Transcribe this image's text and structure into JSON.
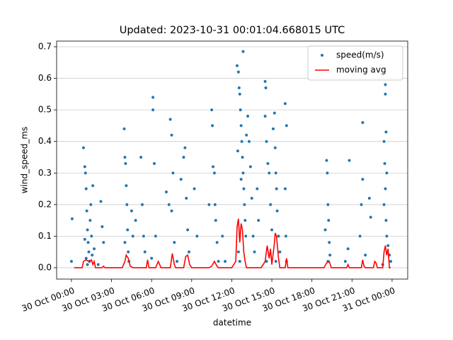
{
  "chart_data": {
    "type": "scatter",
    "title": "Updated: 2023-10-31 00:01:04.668015 UTC",
    "x_label": "datetime",
    "y_label": "wind_speed_ms",
    "xlim": [
      -1.11,
      25.17
    ],
    "xticks": [
      {
        "value": 0,
        "label": "30 Oct 00:00"
      },
      {
        "value": 3,
        "label": "30 Oct 03:00"
      },
      {
        "value": 6,
        "label": "30 Oct 06:00"
      },
      {
        "value": 9,
        "label": "30 Oct 09:00"
      },
      {
        "value": 12,
        "label": "30 Oct 12:00"
      },
      {
        "value": 15,
        "label": "30 Oct 15:00"
      },
      {
        "value": 18,
        "label": "30 Oct 18:00"
      },
      {
        "value": 21,
        "label": "30 Oct 21:00"
      },
      {
        "value": 24,
        "label": "31 Oct 00:00"
      }
    ],
    "ylim": [
      -0.036,
      0.718
    ],
    "yticks": [
      {
        "value": 0,
        "label": "0.0"
      },
      0.1,
      0.2,
      0.3,
      0.4,
      0.5,
      0.6,
      0.7
    ],
    "grid": "y",
    "legend": "upper right",
    "series": [
      {
        "name": "speed(m/s)",
        "type": "scatter",
        "color": "#1f77b4",
        "x": [
          0.05,
          0.0,
          0.9,
          1.0,
          1.05,
          1.1,
          1.15,
          1.2,
          1.25,
          1.3,
          1.35,
          1.4,
          1.45,
          1.5,
          1.55,
          1.6,
          1.7,
          1.2,
          1.0,
          1.1,
          2.2,
          2.3,
          2.4,
          2.0,
          3.95,
          4.0,
          4.05,
          4.1,
          4.15,
          4.2,
          4.25,
          4.3,
          4.0,
          4.5,
          4.6,
          4.8,
          5.2,
          5.3,
          5.4,
          5.5,
          6.0,
          6.1,
          6.1,
          6.2,
          6.3,
          7.1,
          7.3,
          7.4,
          7.5,
          7.6,
          7.5,
          7.7,
          7.9,
          8.2,
          8.4,
          8.5,
          8.6,
          8.7,
          8.8,
          9.2,
          9.4,
          10.3,
          10.5,
          10.55,
          10.6,
          10.7,
          10.75,
          10.8,
          10.9,
          11.0,
          11.3,
          11.5,
          12.4,
          12.5,
          12.55,
          12.6,
          12.65,
          12.7,
          12.75,
          12.8,
          12.85,
          12.9,
          12.95,
          13.0,
          13.05,
          12.5,
          12.6,
          12.85,
          13.2,
          13.3,
          13.4,
          13.5,
          13.6,
          13.7,
          12.7,
          12.45,
          13.1,
          13.9,
          14.0,
          14.5,
          14.55,
          14.5,
          14.6,
          14.7,
          14.8,
          14.9,
          15.0,
          15.1,
          15.2,
          15.25,
          15.3,
          15.35,
          15.4,
          15.5,
          15.6,
          14.6,
          15.3,
          16.0,
          16.1,
          16.0,
          16.05,
          16.1,
          19.1,
          19.15,
          19.2,
          19.25,
          19.3,
          19.35,
          19.0,
          19.2,
          20.8,
          20.7,
          20.5,
          21.7,
          21.6,
          21.8,
          21.8,
          22.0,
          22.3,
          22.4,
          23.4,
          23.5,
          23.5,
          23.55,
          23.45,
          23.6,
          23.5,
          23.4,
          23.55,
          23.6,
          23.7,
          23.8,
          23.9,
          23.3
        ],
        "values": [
          0.155,
          0.02,
          0.38,
          0.32,
          0.3,
          0.25,
          0.18,
          0.12,
          0.08,
          0.05,
          0.02,
          0.15,
          0.2,
          0.1,
          0.04,
          0.26,
          0.06,
          0.01,
          0.09,
          0.03,
          0.21,
          0.13,
          0.08,
          0.01,
          0.44,
          0.35,
          0.33,
          0.26,
          0.2,
          0.12,
          0.05,
          0.02,
          0.08,
          0.18,
          0.1,
          0.15,
          0.35,
          0.2,
          0.1,
          0.05,
          0.03,
          0.54,
          0.5,
          0.33,
          0.1,
          0.24,
          0.2,
          0.47,
          0.42,
          0.3,
          0.18,
          0.08,
          0.02,
          0.28,
          0.35,
          0.38,
          0.22,
          0.12,
          0.05,
          0.25,
          0.1,
          0.2,
          0.5,
          0.45,
          0.32,
          0.3,
          0.2,
          0.15,
          0.08,
          0.02,
          0.1,
          0.02,
          0.64,
          0.62,
          0.57,
          0.55,
          0.5,
          0.45,
          0.4,
          0.35,
          0.3,
          0.25,
          0.2,
          0.15,
          0.1,
          0.05,
          0.02,
          0.685,
          0.48,
          0.4,
          0.32,
          0.22,
          0.1,
          0.05,
          0.28,
          0.37,
          0.42,
          0.25,
          0.15,
          0.59,
          0.57,
          0.48,
          0.4,
          0.33,
          0.3,
          0.2,
          0.12,
          0.44,
          0.49,
          0.38,
          0.3,
          0.25,
          0.18,
          0.1,
          0.05,
          0.02,
          0.02,
          0.52,
          0.45,
          0.25,
          0.1,
          0.02,
          0.34,
          0.3,
          0.2,
          0.15,
          0.08,
          0.04,
          0.12,
          0.02,
          0.34,
          0.06,
          0.02,
          0.2,
          0.1,
          0.46,
          0.28,
          0.04,
          0.22,
          0.16,
          0.4,
          0.58,
          0.55,
          0.43,
          0.33,
          0.3,
          0.25,
          0.2,
          0.15,
          0.1,
          0.07,
          0.04,
          0.02,
          0.01
        ]
      },
      {
        "name": "moving avg",
        "type": "line",
        "color": "#ff0000",
        "x": [
          0.2,
          0.8,
          0.9,
          1.1,
          1.3,
          1.5,
          1.6,
          1.7,
          1.8,
          2.3,
          2.4,
          2.5,
          3.8,
          4.0,
          4.1,
          4.25,
          4.4,
          4.6,
          5.6,
          5.7,
          5.8,
          6.3,
          6.5,
          6.7,
          7.4,
          7.55,
          7.7,
          7.8,
          8.4,
          8.55,
          8.7,
          8.85,
          9.0,
          10.3,
          10.5,
          10.7,
          10.9,
          11.0,
          12.0,
          12.3,
          12.4,
          12.5,
          12.6,
          12.7,
          12.8,
          12.9,
          13.0,
          13.1,
          14.2,
          14.5,
          14.65,
          14.8,
          14.9,
          15.0,
          15.2,
          15.25,
          15.35,
          15.5,
          15.6,
          16.0,
          16.1,
          16.2,
          18.9,
          19.1,
          19.3,
          19.45,
          20.6,
          20.7,
          20.8,
          21.7,
          21.8,
          21.9,
          22.0,
          22.6,
          22.7,
          22.8,
          22.9,
          23.3,
          23.4,
          23.5,
          23.6,
          23.7,
          23.8,
          23.9
        ],
        "values": [
          0,
          0,
          0.02,
          0.025,
          0.02,
          0.025,
          0.01,
          0.02,
          0,
          0,
          0.005,
          0,
          0,
          0.02,
          0.04,
          0.03,
          0.005,
          0,
          0,
          0.025,
          0,
          0,
          0.02,
          0,
          0,
          0.045,
          0.01,
          0,
          0,
          0.035,
          0.04,
          0.01,
          0,
          0,
          0.005,
          0.02,
          0.005,
          0,
          0,
          0.02,
          0.13,
          0.155,
          0.08,
          0.14,
          0.12,
          0.05,
          0.02,
          0,
          0,
          0.02,
          0.07,
          0.03,
          0.06,
          0.01,
          0.08,
          0.11,
          0.1,
          0.03,
          0,
          0,
          0.03,
          0,
          0,
          0.015,
          0.02,
          0,
          0,
          0.01,
          0,
          0,
          0.025,
          0.005,
          0,
          0,
          0.02,
          0.015,
          0,
          0,
          0.05,
          0.07,
          0.04,
          0.06,
          0,
          0
        ]
      }
    ]
  }
}
